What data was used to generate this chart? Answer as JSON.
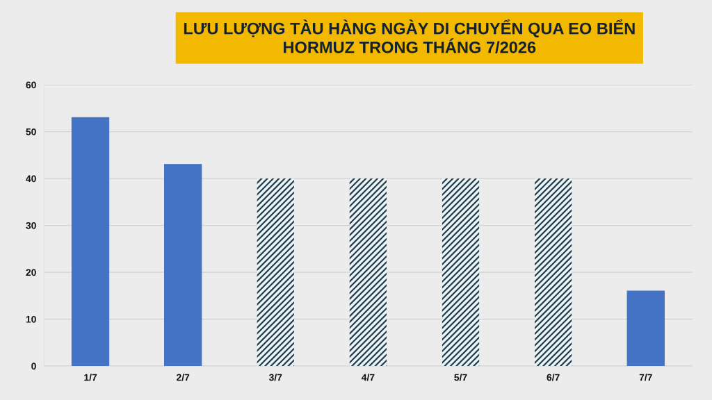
{
  "chart_data": {
    "type": "bar",
    "title": "LƯU LƯỢNG TÀU HÀNG NGÀY DI CHUYỂN QUA EO BIỂN\nHORMUZ TRONG THÁNG 7/2026",
    "categories": [
      "1/7",
      "2/7",
      "3/7",
      "4/7",
      "5/7",
      "6/7",
      "7/7"
    ],
    "series": [
      {
        "color": "#4472c4",
        "values": [
          53,
          43,
          null,
          null,
          null,
          null,
          16
        ]
      },
      {
        "color": "#263b4c",
        "values": [
          null,
          null,
          40,
          40,
          40,
          40,
          null
        ]
      }
    ],
    "stacked": true,
    "ylim": [
      0,
      60
    ],
    "yticks": [
      0,
      10,
      20,
      30,
      40,
      50,
      60
    ],
    "grid": "y"
  }
}
